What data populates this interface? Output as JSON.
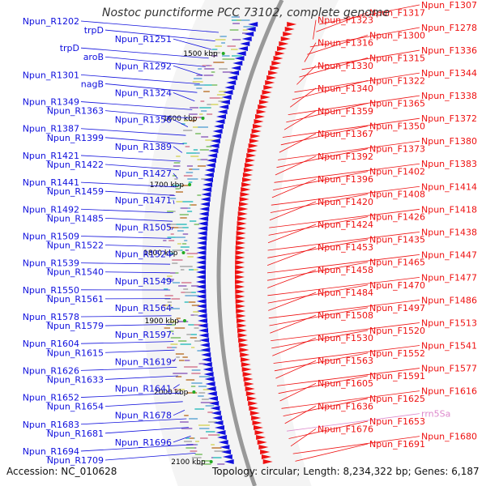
{
  "title": "Nostoc punctiforme PCC 73102, complete genome",
  "footer": {
    "accession": "Accession: NC_010628",
    "topology": "Topology: circular; Length: 8,234,322 bp; Genes: 6,187"
  },
  "colors": {
    "reverse": "#1010dd",
    "forward": "#ee1111",
    "rna": "#dd88cc",
    "backbone": "#999999",
    "tick": "#22aa22"
  },
  "ticks": [
    "1500 kbp",
    "1600 kbp",
    "1700 kbp",
    "1800 kbp",
    "1900 kbp",
    "2000 kbp",
    "2100 kbp"
  ],
  "left_labels": [
    "Npun_R1202",
    "trpD",
    "Npun_R1251",
    "trpD",
    "aroB",
    "Npun_R1292",
    "Npun_R1301",
    "nagB",
    "Npun_R1324",
    "Npun_R1349",
    "Npun_R1363",
    "Npun_R1356",
    "Npun_R1387",
    "Npun_R1399",
    "Npun_R1389",
    "Npun_R1421",
    "Npun_R1422",
    "Npun_R1427",
    "Npun_R1441",
    "Npun_R1459",
    "Npun_R1471",
    "Npun_R1492",
    "Npun_R1485",
    "Npun_R1505",
    "Npun_R1509",
    "Npun_R1522",
    "Npun_R1524",
    "Npun_R1539",
    "Npun_R1540",
    "Npun_R1549",
    "Npun_R1550",
    "Npun_R1561",
    "Npun_R1564",
    "Npun_R1578",
    "Npun_R1579",
    "Npun_R1597",
    "Npun_R1604",
    "Npun_R1615",
    "Npun_R1619",
    "Npun_R1626",
    "Npun_R1633",
    "Npun_R1641",
    "Npun_R1652",
    "Npun_R1654",
    "Npun_R1678",
    "Npun_R1683",
    "Npun_R1681",
    "Npun_R1696",
    "Npun_R1694",
    "Npun_R1709"
  ],
  "right_labels": [
    "Npun_F1307",
    "Npun_F1317",
    "Npun_F1323",
    "Npun_F1278",
    "Npun_F1300",
    "Npun_F1316",
    "Npun_F1336",
    "Npun_F1315",
    "Npun_F1330",
    "Npun_F1344",
    "Npun_F1322",
    "Npun_F1340",
    "Npun_F1338",
    "Npun_F1365",
    "Npun_F1359",
    "Npun_F1372",
    "Npun_F1350",
    "Npun_F1367",
    "Npun_F1380",
    "Npun_F1373",
    "Npun_F1392",
    "Npun_F1383",
    "Npun_F1402",
    "Npun_F1396",
    "Npun_F1414",
    "Npun_F1408",
    "Npun_F1420",
    "Npun_F1418",
    "Npun_F1426",
    "Npun_F1424",
    "Npun_F1438",
    "Npun_F1435",
    "Npun_F1453",
    "Npun_F1447",
    "Npun_F1465",
    "Npun_F1458",
    "Npun_F1477",
    "Npun_F1470",
    "Npun_F1484",
    "Npun_F1486",
    "Npun_F1497",
    "Npun_F1508",
    "Npun_F1513",
    "Npun_F1520",
    "Npun_F1530",
    "Npun_F1541",
    "Npun_F1552",
    "Npun_F1563",
    "Npun_F1577",
    "Npun_F1591",
    "Npun_F1605",
    "Npun_F1616",
    "Npun_F1625",
    "Npun_F1636",
    "rrn5Sa",
    "Npun_F1653",
    "Npun_F1676",
    "Npun_F1680",
    "Npun_F1691"
  ]
}
